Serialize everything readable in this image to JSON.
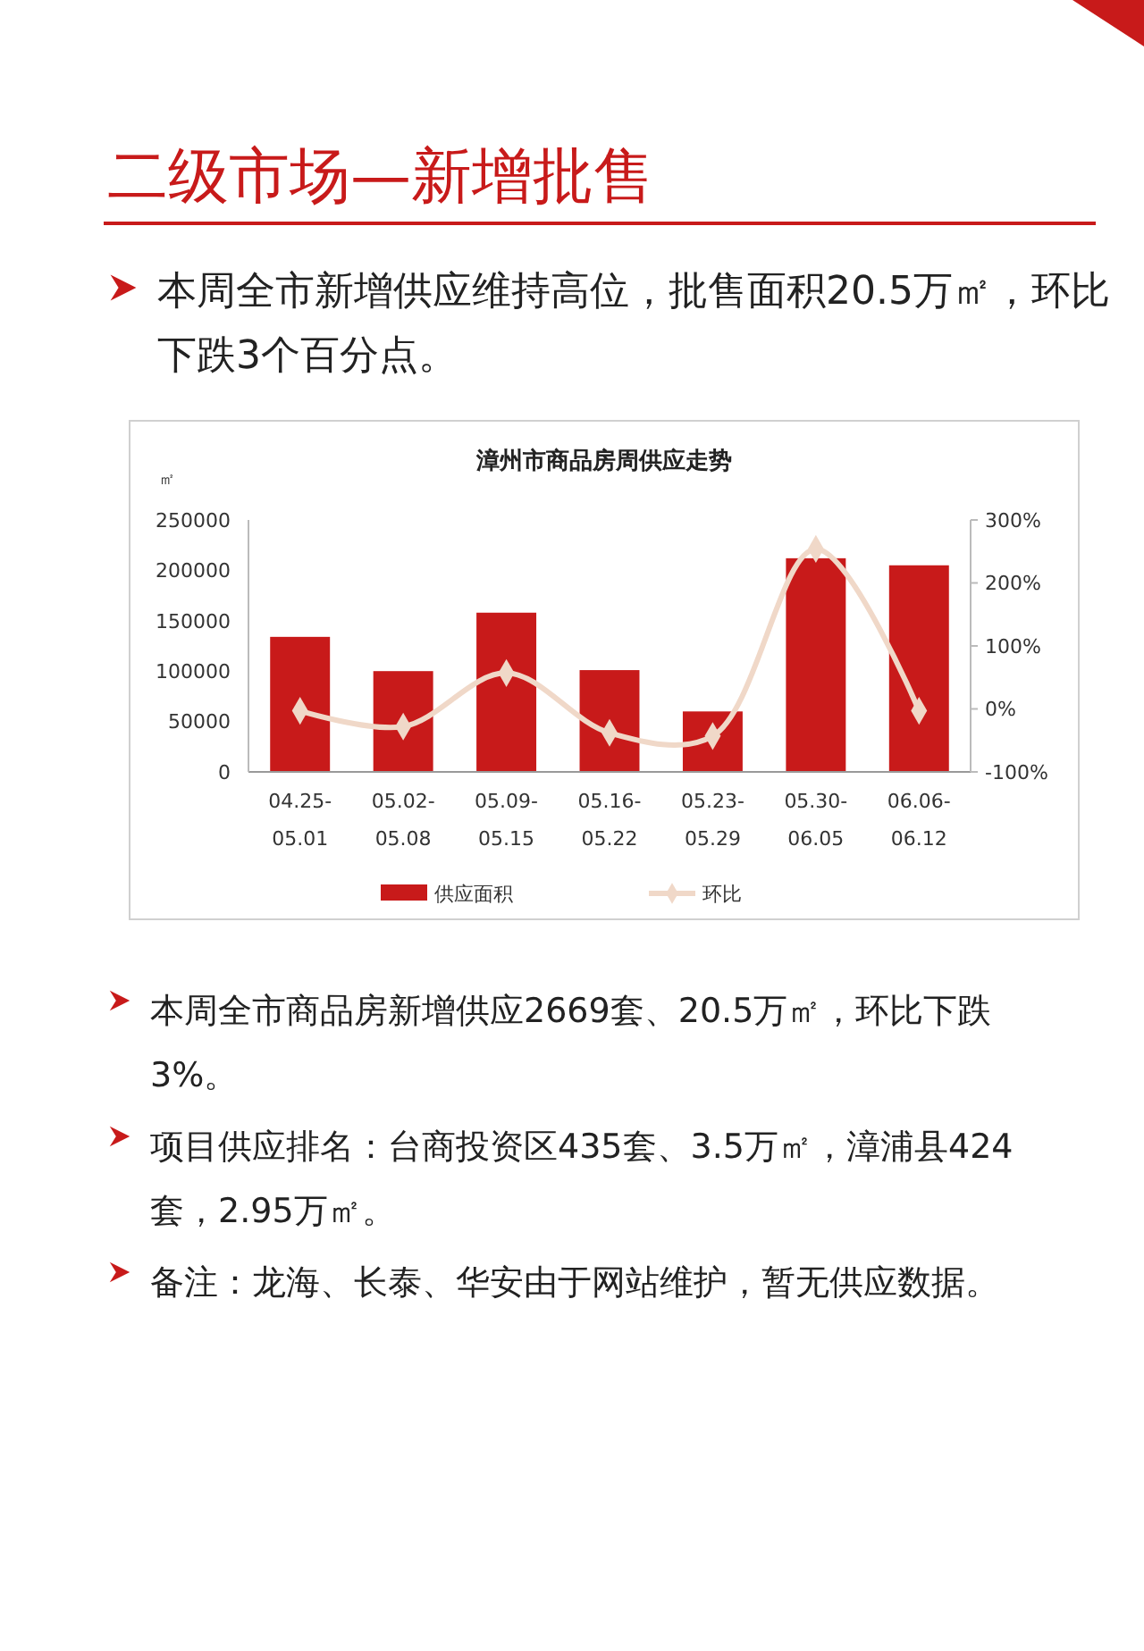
{
  "chart_data": {
    "type": "bar",
    "title": "漳州市商品房周供应走势",
    "ylabel": "㎡",
    "categories": [
      "04.25-05.01",
      "05.02-05.08",
      "05.09-05.15",
      "05.16-05.22",
      "05.23-05.29",
      "05.30-06.05",
      "06.06-06.12"
    ],
    "series": [
      {
        "name": "供应面积",
        "color": "#c81a1a",
        "values": [
          134000,
          100000,
          158000,
          101000,
          60000,
          212000,
          205000
        ]
      },
      {
        "name": "环比",
        "type": "line",
        "axis": "y2",
        "color": "#f0d8c8",
        "marker": "diamond",
        "values": [
          -3,
          -28,
          57,
          -38,
          -43,
          254,
          -3
        ]
      }
    ],
    "ylim": [
      0,
      250000
    ],
    "yticks": [
      0,
      50000,
      100000,
      150000,
      200000,
      250000
    ],
    "y2lim": [
      -100,
      300
    ],
    "y2ticks": [
      {
        "value": -100,
        "label": "-100%"
      },
      {
        "value": 0,
        "label": "0%"
      },
      {
        "value": 100,
        "label": "100%"
      },
      {
        "value": 200,
        "label": "200%"
      },
      {
        "value": 300,
        "label": "300%"
      }
    ],
    "legend": "bottom",
    "grid": false,
    "annotations": [
      "二级市场—新增批售",
      "本周全市新增供应维持高位，批售面积20.5万㎡，环比下跌3个百分点。",
      "本周全市商品房新增供应2669套、20.5万㎡，环比下跌3%。",
      "项目供应排名：台商投资区435套、3.5万㎡，漳浦县424套，2.95万㎡。",
      "备注：龙海、长泰、华安由于网站维护，暂无供应数据。"
    ]
  }
}
